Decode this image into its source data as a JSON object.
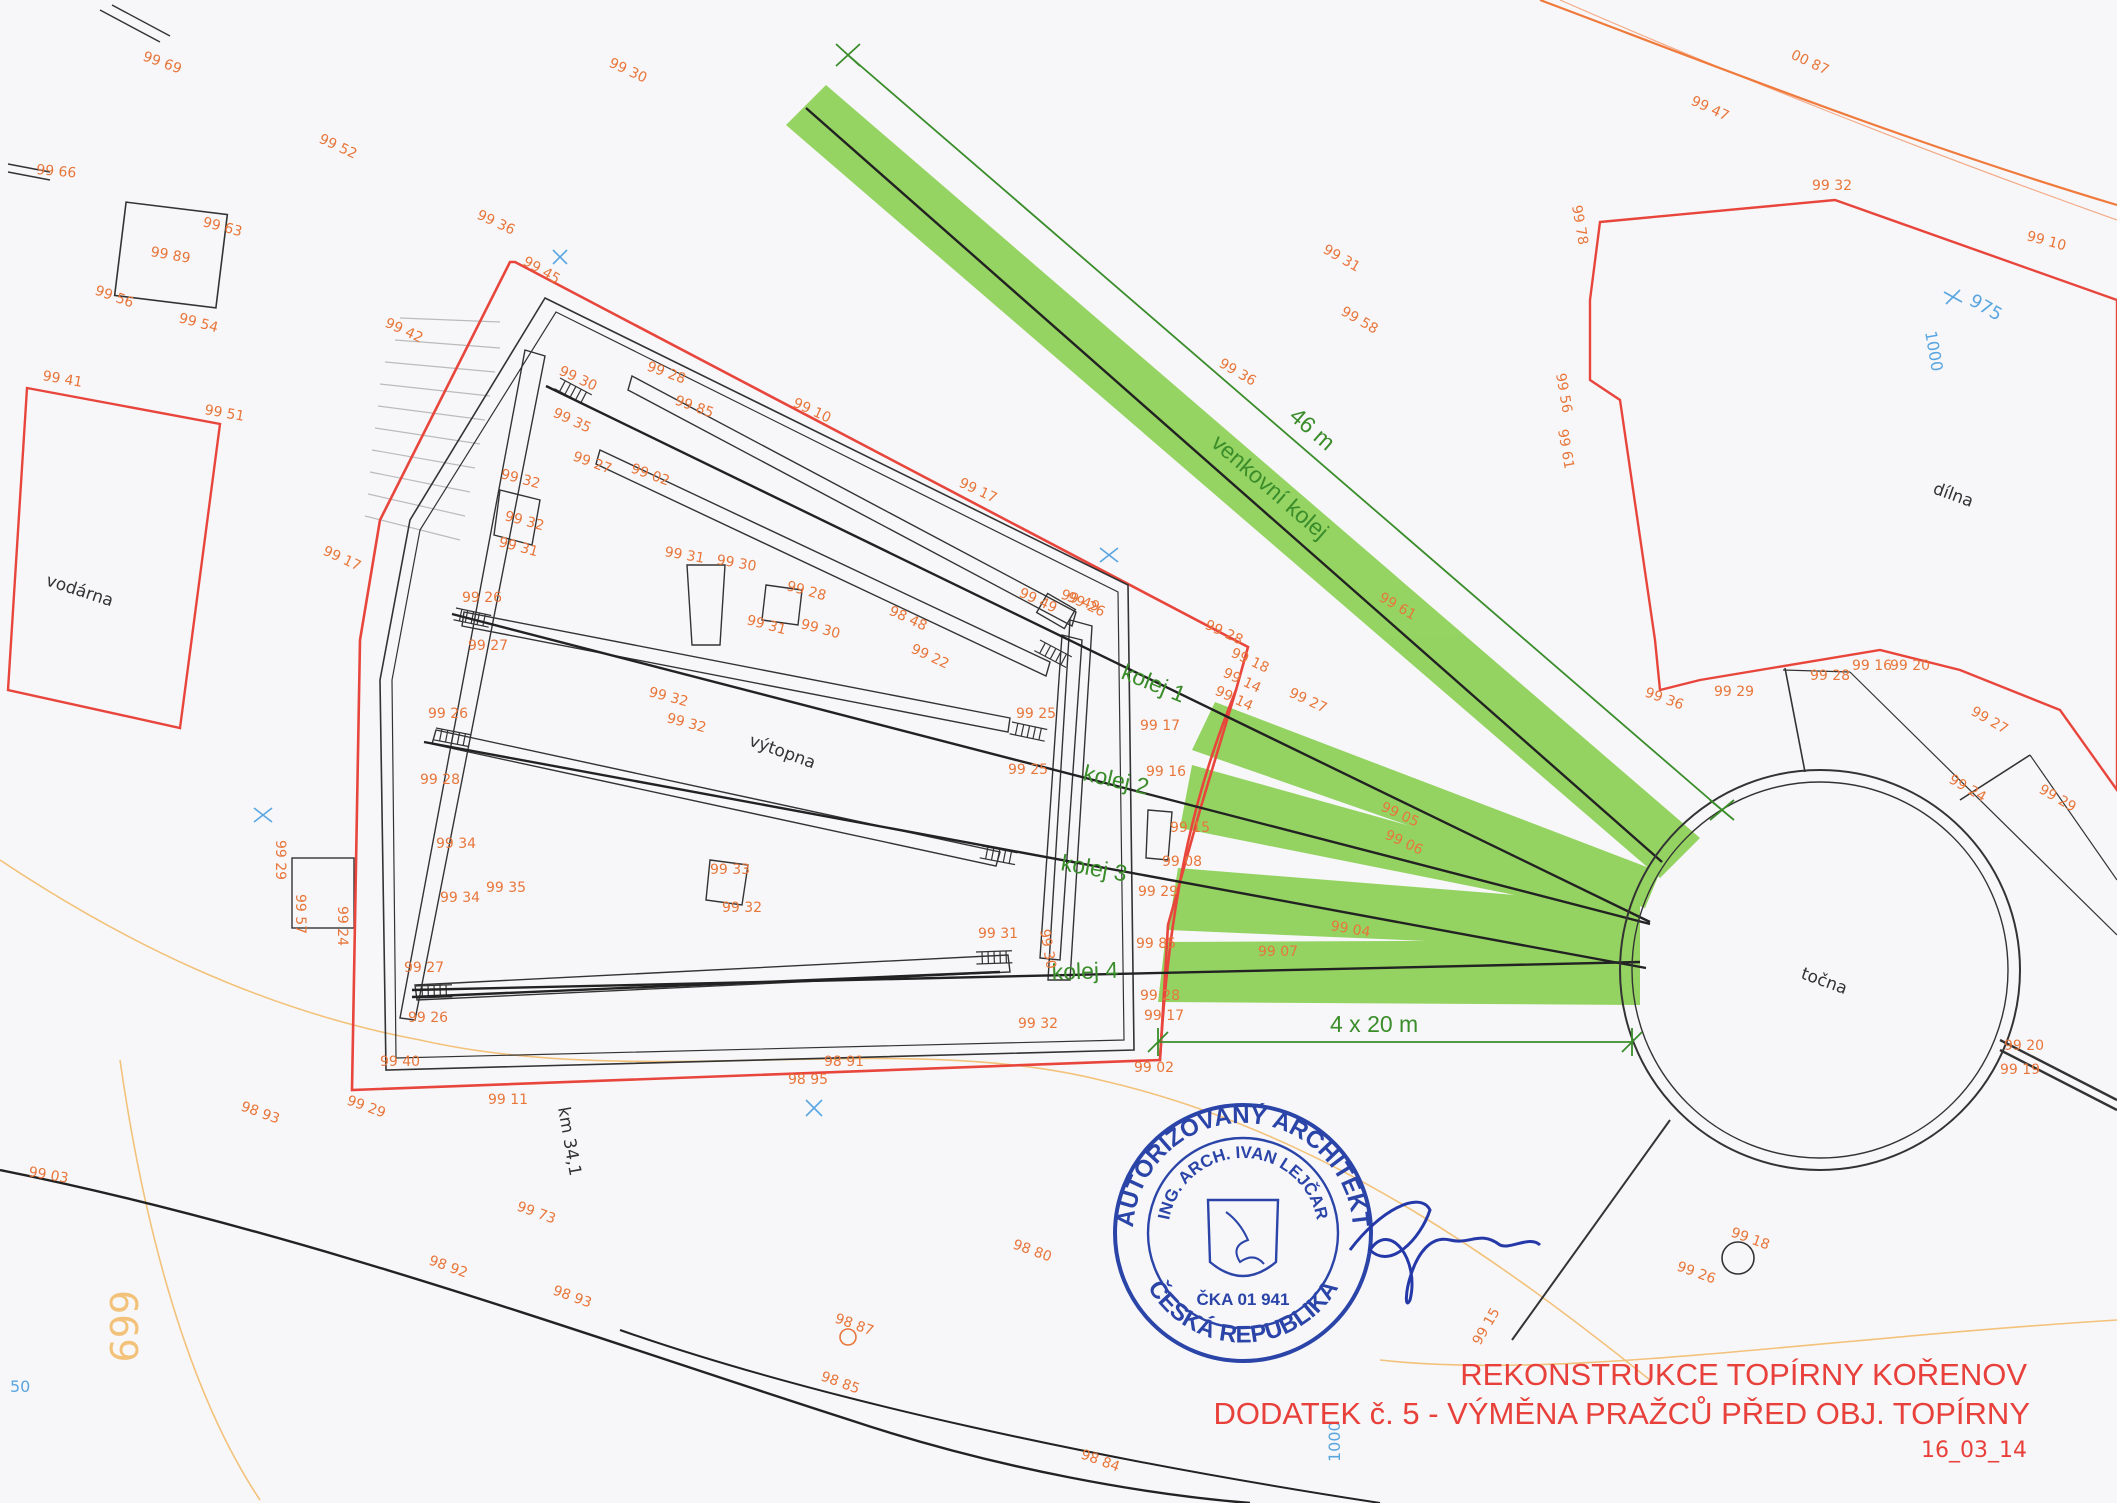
{
  "title": {
    "line1": "REKONSTRUKCE TOPÍRNY KOŘENOV",
    "line2": "DODATEK č. 5 - VÝMĚNA PRAŽCŮ PŘED OBJ. TOPÍRNY",
    "date": "16_03_14"
  },
  "tracks": {
    "outdoor": "venkovní kolej",
    "kolej1": "kolej 1",
    "kolej2": "kolej 2",
    "kolej3": "kolej 3",
    "kolej4": "kolej 4"
  },
  "dimensions": {
    "outdoor_length": "46 m",
    "tracks_length": "4 x 20 m"
  },
  "buildings": {
    "vytopna": "výtopna",
    "vodarna": "vodárna",
    "dilna": "dílna",
    "tocna": "točna"
  },
  "chainage": "km 34,1",
  "contour": "669",
  "grid": {
    "g975": "975",
    "g1000a": "1000",
    "g1000b": "1000",
    "g50": "50"
  },
  "stamp": {
    "outer_top": "AUTORIZOVANÝ ARCHITEKT",
    "inner_top": "ING. ARCH. IVAN LEJČAR",
    "number": "ČKA 01 941",
    "outer_bottom": "ČESKÁ REPUBLIKA"
  },
  "spot_heights": [
    "99 69",
    "99 30",
    "99 52",
    "99 66",
    "99 36",
    "99 63",
    "99 89",
    "99 56",
    "99 54",
    "99 42",
    "99 41",
    "99 51",
    "99 45",
    "99 30",
    "99 35",
    "99 28",
    "99 85",
    "99 27",
    "99 02",
    "99 32",
    "99 32",
    "99 31",
    "99 31",
    "99 17",
    "99 31",
    "99 30",
    "99 28",
    "99 31",
    "99 30",
    "98 48",
    "99 22",
    "99 26",
    "99 27",
    "99 32",
    "99 32",
    "99 25",
    "99 25",
    "99 26",
    "99 28",
    "99 34",
    "99 34",
    "99 35",
    "99 33",
    "99 32",
    "99 27",
    "99 26",
    "99 31",
    "99 30",
    "99 32",
    "99 40",
    "99 29",
    "99 11",
    "98 95",
    "98 91",
    "99 02",
    "99 17",
    "99 16",
    "99 15",
    "99 08",
    "99 29",
    "99 85",
    "99 28",
    "99 17",
    "99 10",
    "99 17",
    "99 49",
    "99 26",
    "99 28",
    "99 18",
    "99 14",
    "99 14",
    "99 05",
    "99 06",
    "99 04",
    "99 07",
    "99 61",
    "99 36",
    "99 58",
    "99 47",
    "00 87",
    "99 32",
    "99 10",
    "99 78",
    "99 56",
    "99 61",
    "99 36",
    "99 29",
    "99 28",
    "99 16",
    "99 20",
    "99 27",
    "99 24",
    "99 29",
    "99 20",
    "99 19",
    "99 18",
    "99 26",
    "99 15",
    "98 93",
    "98 92",
    "98 93",
    "99 73",
    "98 85",
    "98 84",
    "98 80",
    "98 87",
    "99 03",
    "99 27",
    "99 57",
    "99 24",
    "99 29",
    "99 49"
  ],
  "colors": {
    "red_outline": "#e8463c",
    "orange_contour": "#f07a3c",
    "green_band": "#8fd25a",
    "green_dim": "#3a8d2a",
    "stamp_blue": "#2b44a8",
    "grid_blue": "#5aa6e0"
  }
}
